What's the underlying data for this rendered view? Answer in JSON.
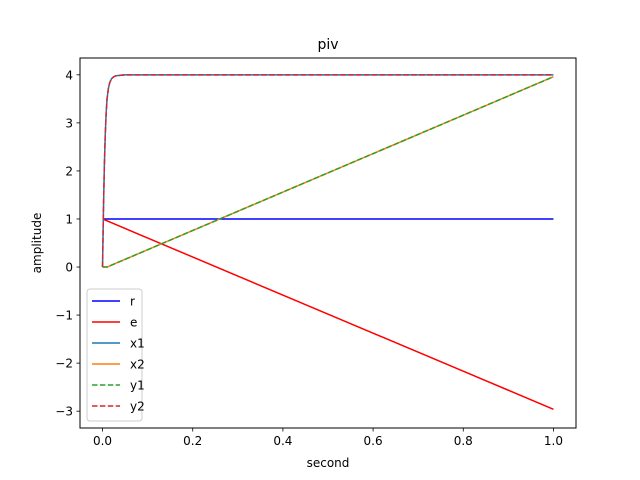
{
  "chart_data": {
    "type": "line",
    "title": "piv",
    "xlabel": "second",
    "ylabel": "amplitude",
    "xlim": [
      -0.05,
      1.05
    ],
    "ylim": [
      -3.35,
      4.35
    ],
    "xticks": [
      0.0,
      0.2,
      0.4,
      0.6,
      0.8,
      1.0
    ],
    "xtick_labels": [
      "0.0",
      "0.2",
      "0.4",
      "0.6",
      "0.8",
      "1.0"
    ],
    "yticks": [
      -3,
      -2,
      -1,
      0,
      1,
      2,
      3,
      4
    ],
    "ytick_labels": [
      "−3",
      "−2",
      "−1",
      "0",
      "1",
      "2",
      "3",
      "4"
    ],
    "grid": false,
    "legend_position": "lower-left",
    "series": [
      {
        "name": "r",
        "color": "#0000ff",
        "dash": "solid",
        "x": [
          0.0,
          1.0
        ],
        "y": [
          1,
          1
        ]
      },
      {
        "name": "e",
        "color": "#ff0000",
        "dash": "solid",
        "x": [
          0.0,
          1.0
        ],
        "y": [
          1,
          -2.96
        ]
      },
      {
        "name": "x1",
        "color": "#1f77b4",
        "dash": "solid",
        "x": [
          0.0,
          0.002,
          0.004,
          0.006,
          0.008,
          0.01,
          0.013,
          0.016,
          0.02,
          0.025,
          0.03,
          0.04,
          0.05,
          1.0
        ],
        "y": [
          0.0,
          1.2,
          2.1,
          2.75,
          3.2,
          3.5,
          3.72,
          3.84,
          3.92,
          3.96,
          3.98,
          3.99,
          4.0,
          4.0
        ]
      },
      {
        "name": "x2",
        "color": "#ff7f0e",
        "dash": "solid",
        "x": [
          0.0,
          0.01,
          1.0
        ],
        "y": [
          0.0,
          0.0,
          3.96
        ]
      },
      {
        "name": "y1",
        "color": "#2ca02c",
        "dash": "dashed",
        "x": [
          0.0,
          0.01,
          1.0
        ],
        "y": [
          0.0,
          0.0,
          3.96
        ]
      },
      {
        "name": "y2",
        "color": "#d62728",
        "dash": "dashed",
        "x": [
          0.0,
          0.002,
          0.004,
          0.006,
          0.008,
          0.01,
          0.013,
          0.016,
          0.02,
          0.025,
          0.03,
          0.04,
          0.05,
          1.0
        ],
        "y": [
          0.0,
          1.2,
          2.1,
          2.75,
          3.2,
          3.5,
          3.72,
          3.84,
          3.92,
          3.96,
          3.98,
          3.99,
          4.0,
          4.0
        ]
      }
    ]
  }
}
